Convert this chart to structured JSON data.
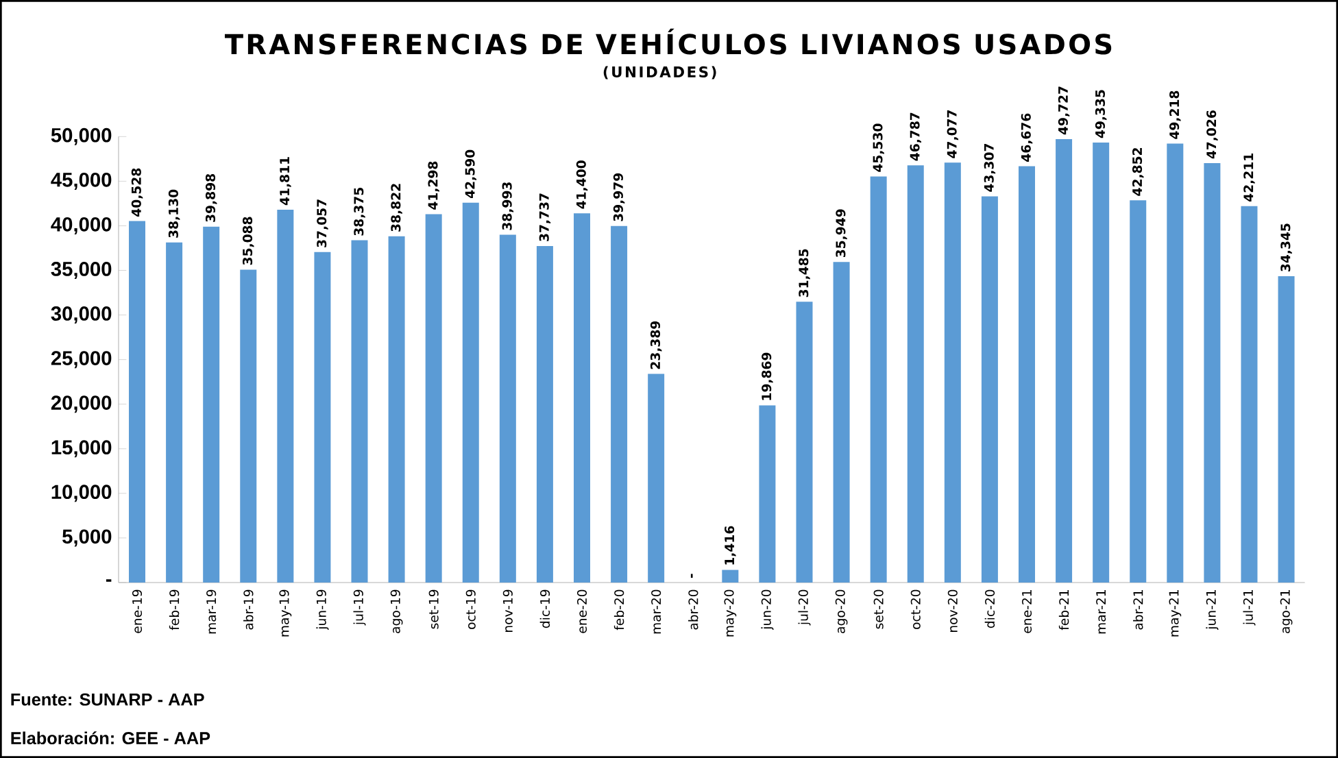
{
  "chart_data": {
    "type": "bar",
    "title": "TRANSFERENCIAS DE VEHÍCULOS LIVIANOS USADOS",
    "subtitle": "(UNIDADES)",
    "categories": [
      "ene-19",
      "feb-19",
      "mar-19",
      "abr-19",
      "may-19",
      "jun-19",
      "jul-19",
      "ago-19",
      "set-19",
      "oct-19",
      "nov-19",
      "dic-19",
      "ene-20",
      "feb-20",
      "mar-20",
      "abr-20",
      "may-20",
      "jun-20",
      "jul-20",
      "ago-20",
      "set-20",
      "oct-20",
      "nov-20",
      "dic-20",
      "ene-21",
      "feb-21",
      "mar-21",
      "abr-21",
      "may-21",
      "jun-21",
      "jul-21",
      "ago-21"
    ],
    "values": [
      40528,
      38130,
      39898,
      35088,
      41811,
      37057,
      38375,
      38822,
      41298,
      42590,
      38993,
      37737,
      41400,
      39979,
      23389,
      0,
      1416,
      19869,
      31485,
      35949,
      45530,
      46787,
      47077,
      43307,
      46676,
      49727,
      49335,
      42852,
      49218,
      47026,
      42211,
      34345
    ],
    "value_labels": [
      "40,528",
      "38,130",
      "39,898",
      "35,088",
      "41,811",
      "37,057",
      "38,375",
      "38,822",
      "41,298",
      "42,590",
      "38,993",
      "37,737",
      "41,400",
      "39,979",
      "23,389",
      "-",
      "1,416",
      "19,869",
      "31,485",
      "35,949",
      "45,530",
      "46,787",
      "47,077",
      "43,307",
      "46,676",
      "49,727",
      "49,335",
      "42,852",
      "49,218",
      "47,026",
      "42,211",
      "34,345"
    ],
    "color": "#5b9bd5",
    "ylim": [
      0,
      50000
    ],
    "yticks": [
      {
        "value": 0,
        "label": "-"
      },
      {
        "value": 5000,
        "label": "5,000"
      },
      {
        "value": 10000,
        "label": "10,000"
      },
      {
        "value": 15000,
        "label": "15,000"
      },
      {
        "value": 20000,
        "label": "20,000"
      },
      {
        "value": 25000,
        "label": "25,000"
      },
      {
        "value": 30000,
        "label": "30,000"
      },
      {
        "value": 35000,
        "label": "35,000"
      },
      {
        "value": 40000,
        "label": "40,000"
      },
      {
        "value": 45000,
        "label": "45,000"
      },
      {
        "value": 50000,
        "label": "50,000"
      }
    ],
    "annotations": [
      "Fuente: SUNARP - AAP",
      "Elaboración: GEE - AAP"
    ]
  }
}
